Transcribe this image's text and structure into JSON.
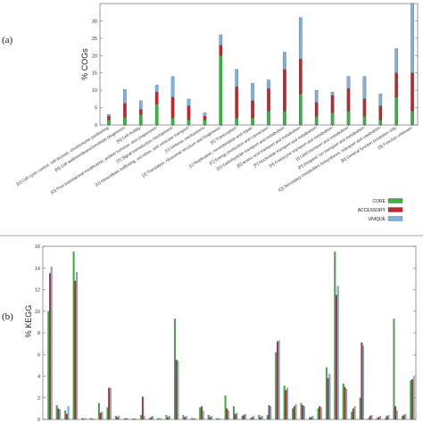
{
  "panels": {
    "a": "(a)",
    "b": "(b)"
  },
  "colors": {
    "core": "#3cb043",
    "accessory": "#c0262a",
    "unique": "#7fb2de",
    "axis": "#555555"
  },
  "chart_data": [
    {
      "type": "bar",
      "stacked": true,
      "title": "",
      "xlabel": "",
      "ylabel": "% COGs",
      "ylim": [
        0,
        35
      ],
      "yticks": [
        0,
        5,
        10,
        15,
        20,
        25,
        30
      ],
      "grid": false,
      "legend_placement": "bottom-right",
      "categories": [
        "[D] Cell cycle control, cell division, chromosome partitioning",
        "[M] Cell wall/membrane/envelope biogenesis",
        "[N] Cell motility",
        "[O] Post-translational modification, protein turnover, and chaperones",
        "[T] Signal transduction mechanisms",
        "[U] Intracellular trafficking, secretion, and vesicular transport",
        "[V] Defense mechanisms",
        "[J] Translation, ribosomal structure and biogenesis",
        "[K] Transcription",
        "[L] Replication, recombination and repair",
        "[C] Energy production and conversion",
        "[G] Carbohydrate transport and metabolism",
        "[E] Amino acid transport and metabolism",
        "[F] Nucleotide transport and metabolism",
        "[H] Coenzyme transport and metabolism",
        "[I] Lipid transport and metabolism",
        "[P] Inorganic ion transport and metabolism",
        "[Q] Secondary metabolites biosynthesis, transport and catabolism",
        "[R] General function prediction only",
        "[S] Function unknown"
      ],
      "series": [
        {
          "name": "CORE",
          "values": [
            1.5,
            2.2,
            3,
            6,
            2,
            1.5,
            1.5,
            20,
            2,
            2,
            4,
            4,
            9,
            2.5,
            3.5,
            4,
            2.5,
            1.5,
            8,
            4
          ]
        },
        {
          "name": "ACCESSORY",
          "values": [
            1,
            4,
            1.5,
            3.5,
            6,
            4,
            1,
            3,
            9,
            5,
            6.5,
            12,
            10,
            4,
            5,
            6.5,
            5,
            4,
            7,
            11
          ]
        },
        {
          "name": "UNIQUE",
          "values": [
            0.5,
            4,
            2.5,
            2,
            6,
            2,
            1,
            3,
            5,
            5,
            2.5,
            5,
            12,
            3.5,
            1,
            3.5,
            6.5,
            3.5,
            7,
            21
          ]
        }
      ]
    },
    {
      "type": "bar",
      "stacked": false,
      "title": "",
      "xlabel": "",
      "ylabel": "% KEGG",
      "ylim": [
        0,
        16
      ],
      "yticks": [
        0,
        2,
        4,
        6,
        8,
        10,
        12,
        14,
        16
      ],
      "grid": false,
      "categories": [
        "",
        "",
        "",
        "",
        "",
        "",
        "",
        "",
        "",
        "",
        "",
        "",
        "",
        "",
        "",
        "",
        "",
        "",
        "",
        "",
        "",
        "",
        "",
        "",
        "",
        "",
        "",
        "",
        "",
        "",
        "",
        "",
        "",
        "",
        "",
        "",
        "",
        "",
        "",
        "",
        "",
        "",
        "",
        ""
      ],
      "series": [
        {
          "name": "CORE",
          "values": [
            10,
            1.3,
            0.8,
            15.5,
            0.1,
            0.1,
            1.5,
            1.1,
            0.3,
            0.05,
            0.05,
            0.4,
            0.1,
            0.1,
            0.4,
            9.3,
            0.4,
            0.1,
            1.1,
            0.4,
            0.1,
            2.2,
            1.2,
            0.3,
            0.1,
            0.4,
            0.4,
            6.2,
            3.1,
            1.0,
            1.5,
            0.2,
            1.0,
            4.8,
            15.5,
            3.3,
            0.7,
            2.0,
            0.1,
            0.1,
            0.1,
            9.3,
            0.3,
            3.6
          ]
        },
        {
          "name": "ACCESSORY",
          "values": [
            13.5,
            1.0,
            0.5,
            12.8,
            0.05,
            0.05,
            0.6,
            2.9,
            0.2,
            0.1,
            0.05,
            2.1,
            0.2,
            0.05,
            0.2,
            5.5,
            0.2,
            0.05,
            1.2,
            0.2,
            0.05,
            1.0,
            0.5,
            0.4,
            0.2,
            0.2,
            1.3,
            7.2,
            2.7,
            1.2,
            1.3,
            0.2,
            1.2,
            3.8,
            11.5,
            3.0,
            1.0,
            7.1,
            0.3,
            0.2,
            0.3,
            1.2,
            0.4,
            3.7
          ]
        },
        {
          "name": "UNIQUE",
          "values": [
            14.1,
            0.9,
            1.2,
            13.6,
            0.1,
            0.05,
            0.7,
            2.9,
            0.3,
            0.1,
            0.05,
            0.3,
            0.3,
            0.1,
            0.3,
            5.4,
            0.3,
            0.1,
            0.8,
            0.3,
            0.05,
            0.8,
            0.6,
            0.5,
            0.3,
            0.3,
            1.2,
            7.3,
            2.9,
            1.4,
            1.2,
            0.3,
            1.1,
            4.2,
            12.3,
            2.8,
            1.2,
            6.8,
            0.4,
            0.3,
            0.4,
            0.8,
            0.5,
            3.9
          ]
        }
      ]
    }
  ]
}
